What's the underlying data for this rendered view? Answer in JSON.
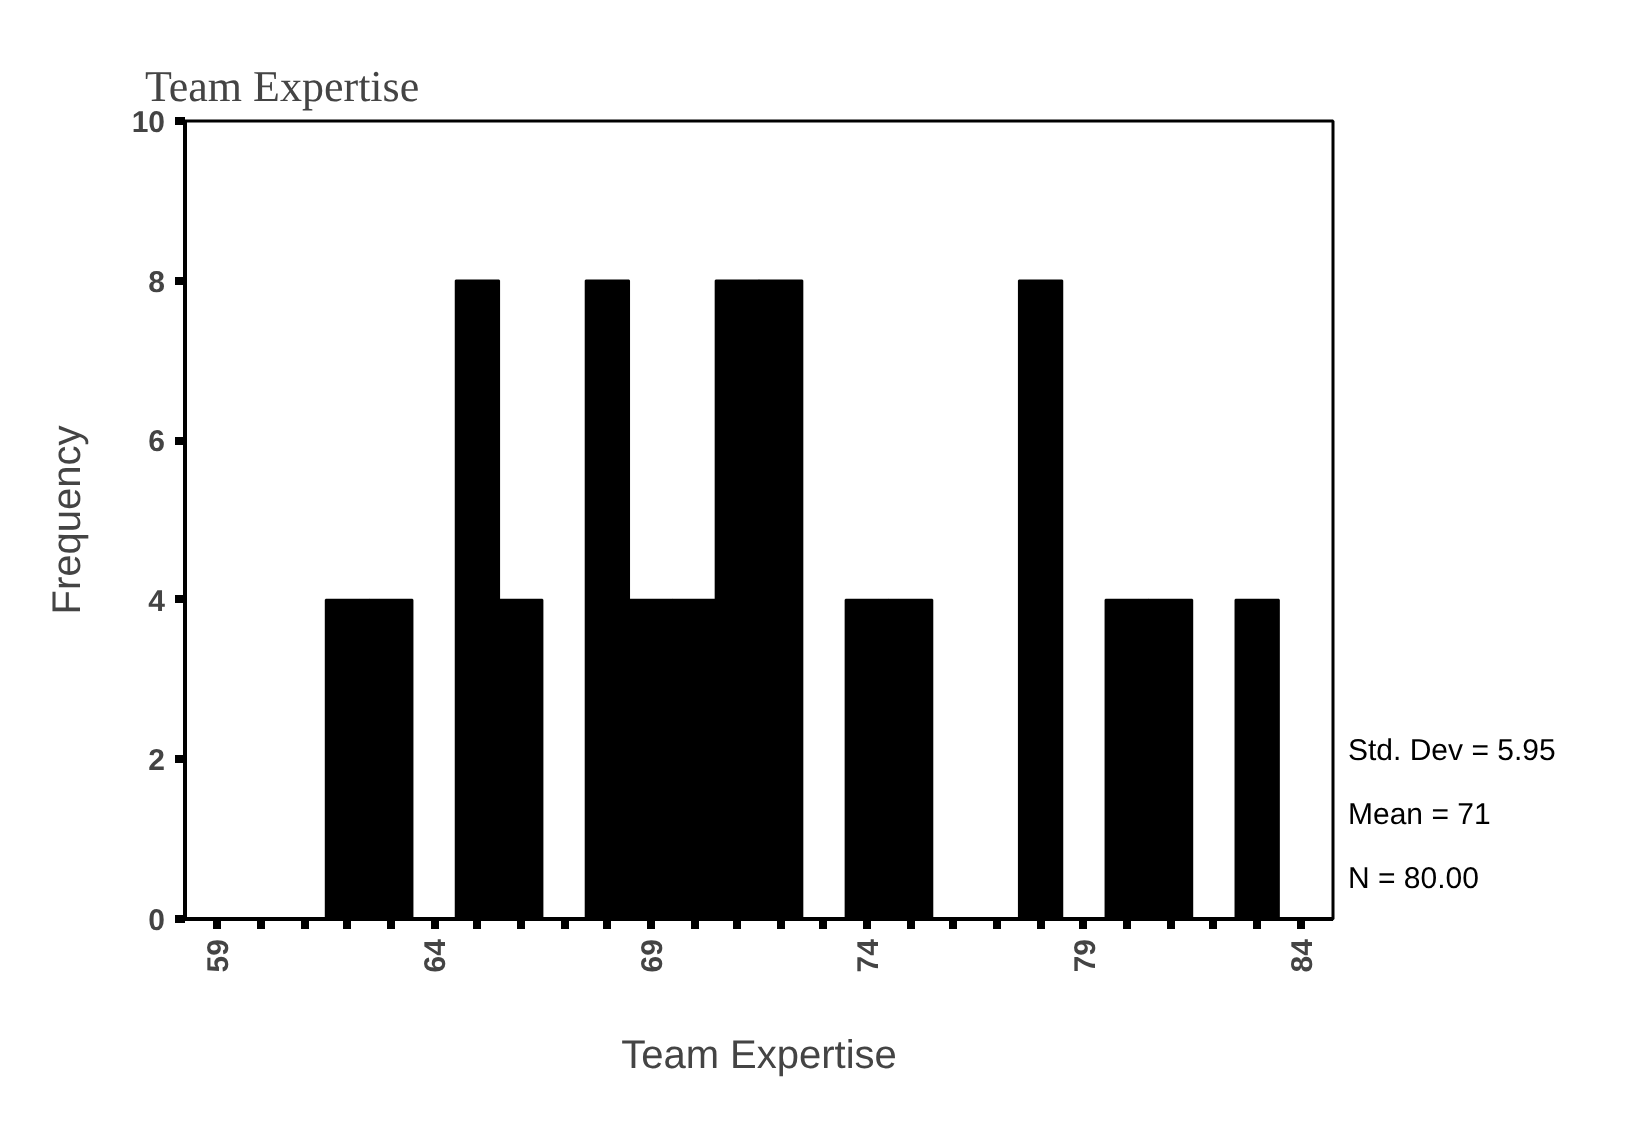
{
  "chart_data": {
    "type": "histogram",
    "title": "Team Expertise",
    "xlabel": "Team Expertise",
    "ylabel": "Frequency",
    "bins": [
      58.5,
      59.5,
      60.5,
      61.5,
      62.5,
      63.5,
      64.5,
      65.5,
      66.5,
      67.5,
      68.5,
      69.5,
      70.5,
      71.5,
      72.5,
      73.5,
      74.5,
      75.5,
      76.5,
      77.5,
      78.5,
      79.5,
      80.5,
      81.5,
      82.5,
      83.5,
      84.5
    ],
    "values": [
      0,
      0,
      0,
      4,
      4,
      0,
      8,
      4,
      0,
      8,
      4,
      4,
      8,
      8,
      0,
      4,
      4,
      0,
      0,
      8,
      0,
      4,
      4,
      0,
      4,
      0
    ],
    "color": "#000000",
    "xlim": [
      58.25,
      84.75
    ],
    "ylim": [
      0,
      10
    ],
    "xticks": [
      59,
      {
        "value": 60,
        "label": null
      },
      {
        "value": 61,
        "label": null
      },
      {
        "value": 62,
        "label": null
      },
      {
        "value": 63,
        "label": null
      },
      64,
      {
        "value": 65,
        "label": null
      },
      {
        "value": 66,
        "label": null
      },
      {
        "value": 67,
        "label": null
      },
      {
        "value": 68,
        "label": null
      },
      69,
      {
        "value": 70,
        "label": null
      },
      {
        "value": 71,
        "label": null
      },
      {
        "value": 72,
        "label": null
      },
      {
        "value": 73,
        "label": null
      },
      74,
      {
        "value": 75,
        "label": null
      },
      {
        "value": 76,
        "label": null
      },
      {
        "value": 77,
        "label": null
      },
      {
        "value": 78,
        "label": null
      },
      79,
      {
        "value": 80,
        "label": null
      },
      {
        "value": 81,
        "label": null
      },
      {
        "value": 82,
        "label": null
      },
      {
        "value": 83,
        "label": null
      },
      84
    ],
    "yticks": [
      0,
      2,
      4,
      6,
      8,
      10
    ],
    "grid": false,
    "annotations": [
      "Std. Dev = 5.95",
      "Mean = 71",
      "N = 80.00"
    ]
  }
}
